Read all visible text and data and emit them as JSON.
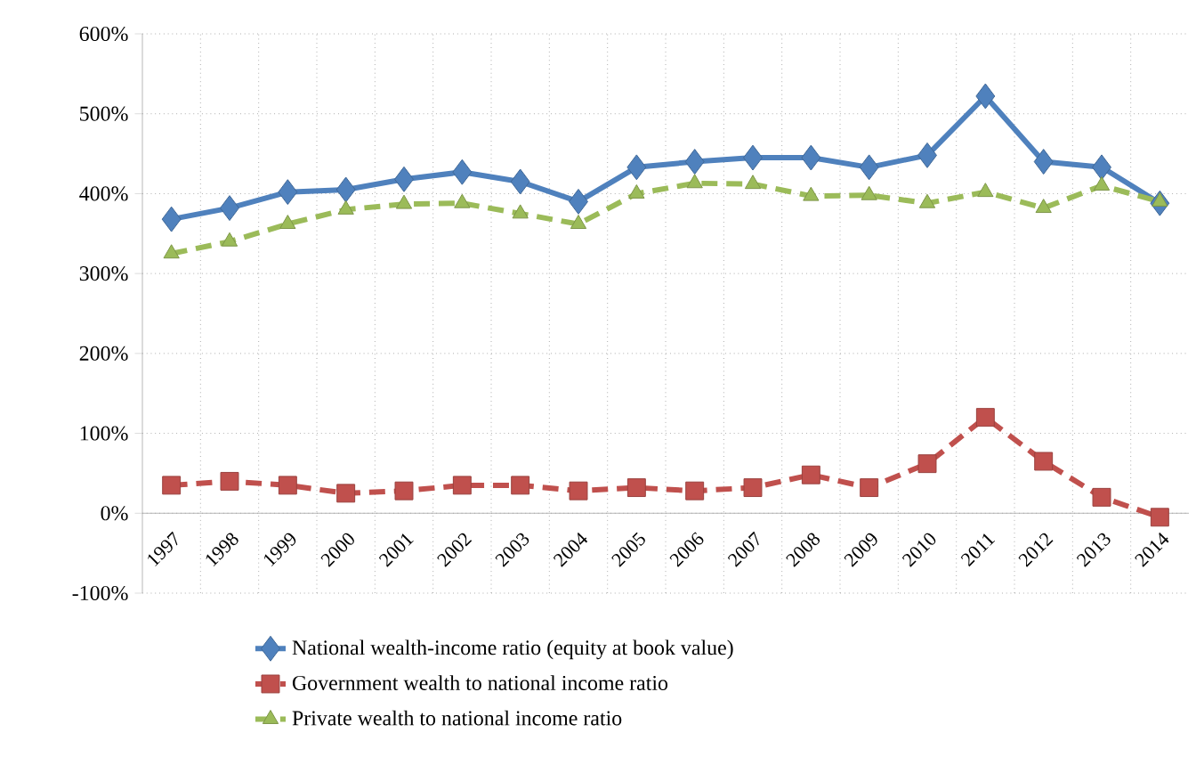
{
  "chart_data": {
    "type": "line",
    "categories": [
      "1997",
      "1998",
      "1999",
      "2000",
      "2001",
      "2002",
      "2003",
      "2004",
      "2005",
      "2006",
      "2007",
      "2008",
      "2009",
      "2010",
      "2011",
      "2012",
      "2013",
      "2014"
    ],
    "series": [
      {
        "name": "National wealth-income ratio (equity at book value)",
        "color": "#4f81bd",
        "marker": "diamond",
        "line_style": "solid",
        "values": [
          368,
          382,
          402,
          405,
          418,
          427,
          415,
          390,
          433,
          440,
          445,
          445,
          433,
          448,
          522,
          440,
          433,
          388
        ]
      },
      {
        "name": "Government wealth to national income ratio",
        "color": "#c0504d",
        "marker": "square",
        "line_style": "dashed",
        "values": [
          35,
          40,
          35,
          25,
          28,
          35,
          35,
          28,
          32,
          28,
          32,
          48,
          32,
          62,
          120,
          65,
          20,
          -5
        ]
      },
      {
        "name": "Private wealth to national income ratio",
        "color": "#9bbb59",
        "marker": "triangle",
        "line_style": "dashed",
        "values": [
          325,
          340,
          362,
          380,
          387,
          388,
          375,
          362,
          400,
          413,
          412,
          397,
          398,
          388,
          402,
          382,
          410,
          390
        ]
      }
    ],
    "ylim": [
      -100,
      600
    ],
    "yticks": [
      {
        "value": -100,
        "label": "-100%"
      },
      {
        "value": 0,
        "label": "0%"
      },
      {
        "value": 100,
        "label": "100%"
      },
      {
        "value": 200,
        "label": "200%"
      },
      {
        "value": 300,
        "label": "300%"
      },
      {
        "value": 400,
        "label": "400%"
      },
      {
        "value": 500,
        "label": "500%"
      },
      {
        "value": 600,
        "label": "600%"
      }
    ],
    "grid": true,
    "legend": "bottom"
  }
}
